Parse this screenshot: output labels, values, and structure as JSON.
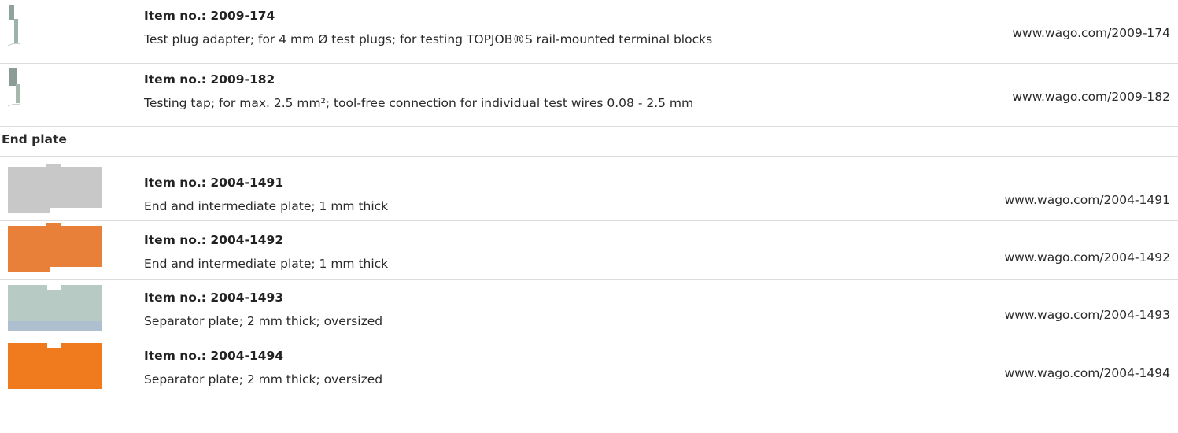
{
  "items": [
    {
      "item_no": "Item no.: 2009-174",
      "description": "Test plug adapter; for 4 mm Ø test plugs; for testing TOPJOB®S rail-mounted terminal blocks",
      "url": "www.wago.com/2009-174"
    },
    {
      "item_no": "Item no.: 2009-182",
      "description": "Testing tap; for max. 2.5 mm²; tool-free connection for individual test wires 0.08 - 2.5 mm",
      "url": "www.wago.com/2009-182"
    }
  ],
  "section": {
    "title": "End plate",
    "items": [
      {
        "item_no": "Item no.: 2004-1491",
        "description": "End and intermediate plate; 1 mm thick",
        "url": "www.wago.com/2004-1491"
      },
      {
        "item_no": "Item no.: 2004-1492",
        "description": "End and intermediate plate; 1 mm thick",
        "url": "www.wago.com/2004-1492"
      },
      {
        "item_no": "Item no.: 2004-1493",
        "description": "Separator plate; 2 mm thick; oversized",
        "url": "www.wago.com/2004-1493"
      },
      {
        "item_no": "Item no.: 2004-1494",
        "description": "Separator plate; 2 mm thick; oversized",
        "url": "www.wago.com/2004-1494"
      }
    ]
  }
}
